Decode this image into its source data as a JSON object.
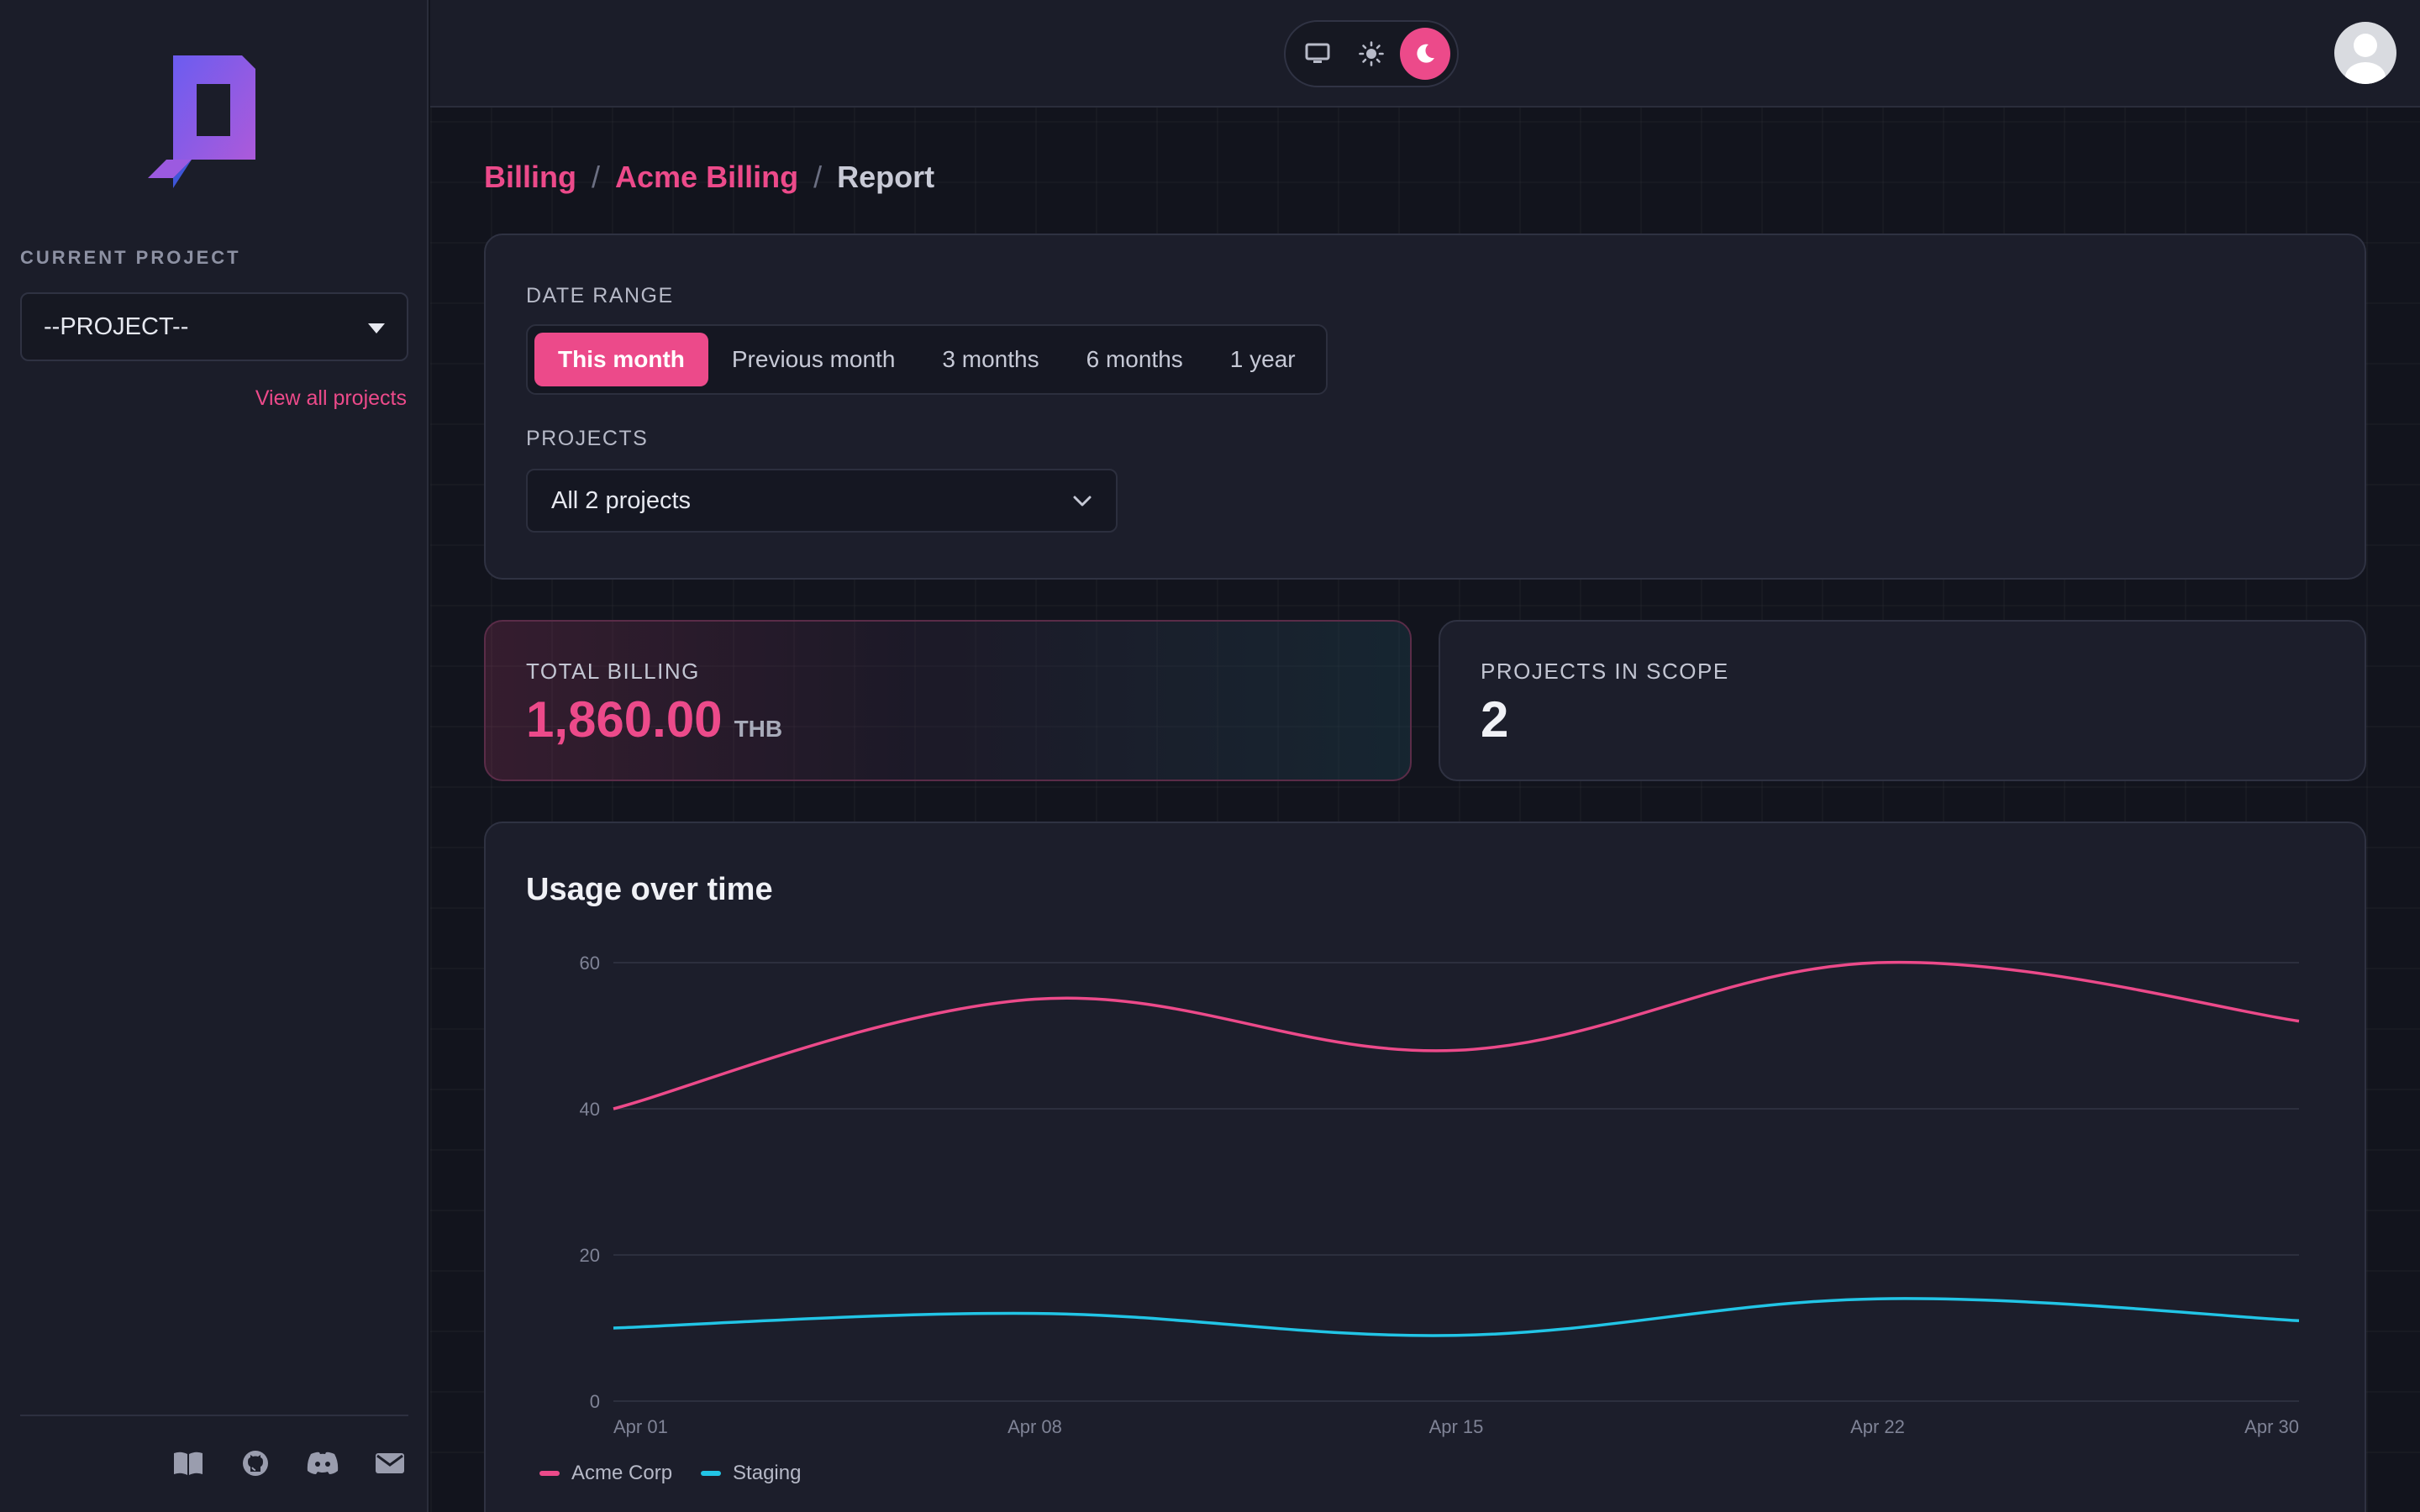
{
  "sidebar": {
    "current_project_label": "CURRENT PROJECT",
    "project_select_value": "--PROJECT--",
    "view_all_link": "View all projects",
    "footer_icons": [
      "book-icon",
      "github-icon",
      "discord-icon",
      "mail-icon"
    ]
  },
  "topbar": {
    "theme_options": [
      "monitor-icon",
      "sun-icon",
      "moon-icon"
    ],
    "active_theme": "moon-icon"
  },
  "breadcrumb": {
    "items": [
      "Billing",
      "Acme Billing"
    ],
    "current": "Report",
    "separator": "/"
  },
  "filters": {
    "date_range_label": "DATE RANGE",
    "date_options": [
      "This month",
      "Previous month",
      "3 months",
      "6 months",
      "1 year"
    ],
    "active_date_option": "This month",
    "projects_label": "PROJECTS",
    "projects_value": "All 2 projects"
  },
  "stats": {
    "total_billing_label": "TOTAL BILLING",
    "total_billing_value": "1,860.00",
    "total_billing_unit": "THB",
    "projects_in_scope_label": "PROJECTS IN SCOPE",
    "projects_in_scope_value": "2"
  },
  "colors": {
    "accent": "#ec4a8a",
    "series_acme": "#ec4a8a",
    "series_staging": "#22c5e6"
  },
  "chart_data": {
    "type": "line",
    "title": "Usage over time",
    "x": [
      "Apr 01",
      "Apr 08",
      "Apr 15",
      "Apr 22",
      "Apr 30"
    ],
    "ylim": [
      0,
      60
    ],
    "yticks": [
      0,
      20,
      40,
      60
    ],
    "grid": true,
    "legend_position": "bottom-left",
    "series": [
      {
        "name": "Acme Corp",
        "values": [
          40,
          55,
          48,
          60,
          52
        ]
      },
      {
        "name": "Staging",
        "values": [
          10,
          12,
          9,
          14,
          11
        ]
      }
    ]
  }
}
